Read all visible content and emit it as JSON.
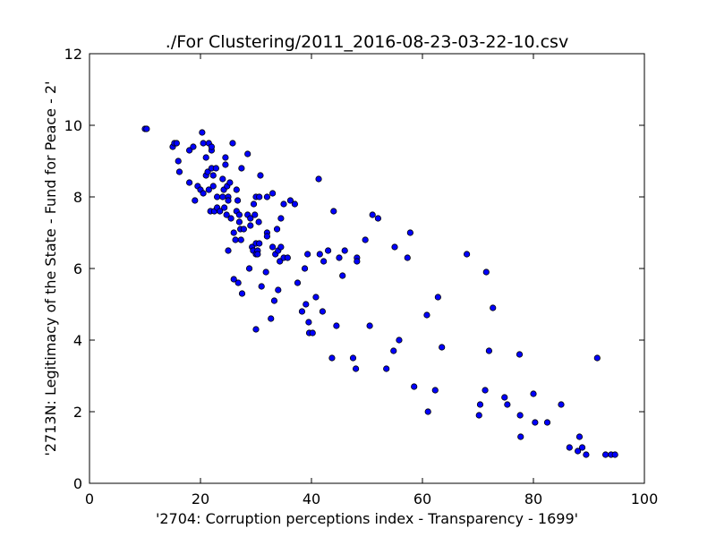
{
  "chart_data": {
    "type": "scatter",
    "title": "./For Clustering/2011_2016-08-23-03-22-10.csv",
    "xlabel": "'2704: Corruption perceptions index - Transparency - 1699'",
    "ylabel": "'2713N: Legitimacy of the State - Fund for Peace - 2'",
    "xlim": [
      0,
      100
    ],
    "ylim": [
      0,
      12
    ],
    "xticks": [
      0,
      20,
      40,
      60,
      80,
      100
    ],
    "yticks": [
      0,
      2,
      4,
      6,
      8,
      10,
      12
    ],
    "xtick_labels": [
      "0",
      "20",
      "40",
      "60",
      "80",
      "100"
    ],
    "ytick_labels": [
      "0",
      "2",
      "4",
      "6",
      "8",
      "10",
      "12"
    ],
    "grid": false,
    "marker_color": "#0000ff",
    "points": [
      [
        10,
        9.9
      ],
      [
        10.3,
        9.9
      ],
      [
        15,
        9.4
      ],
      [
        15.3,
        9.5
      ],
      [
        15.7,
        9.5
      ],
      [
        16,
        9.0
      ],
      [
        16.2,
        8.7
      ],
      [
        18,
        8.4
      ],
      [
        18,
        9.3
      ],
      [
        18.7,
        9.4
      ],
      [
        19,
        7.9
      ],
      [
        19.5,
        8.3
      ],
      [
        20,
        8.2
      ],
      [
        20.3,
        9.8
      ],
      [
        20.5,
        9.5
      ],
      [
        20.5,
        8.1
      ],
      [
        21,
        9.1
      ],
      [
        21,
        8.6
      ],
      [
        21.3,
        8.7
      ],
      [
        21.5,
        9.5
      ],
      [
        21.5,
        8.2
      ],
      [
        21.8,
        7.6
      ],
      [
        22,
        9.3
      ],
      [
        22,
        9.4
      ],
      [
        22,
        8.8
      ],
      [
        22.3,
        8.3
      ],
      [
        22.3,
        8.6
      ],
      [
        22.5,
        7.6
      ],
      [
        22.8,
        8.8
      ],
      [
        23,
        7.7
      ],
      [
        23,
        8.0
      ],
      [
        23.5,
        7.6
      ],
      [
        24,
        8.5
      ],
      [
        24,
        8.0
      ],
      [
        24.2,
        8.2
      ],
      [
        24.3,
        7.7
      ],
      [
        24.5,
        9.1
      ],
      [
        24.5,
        8.9
      ],
      [
        24.7,
        7.5
      ],
      [
        24.8,
        8.3
      ],
      [
        25,
        8.0
      ],
      [
        25,
        7.9
      ],
      [
        25,
        6.5
      ],
      [
        25.3,
        8.4
      ],
      [
        25.5,
        7.4
      ],
      [
        25.8,
        9.5
      ],
      [
        26,
        7.0
      ],
      [
        26,
        5.7
      ],
      [
        26.3,
        6.8
      ],
      [
        26.5,
        7.6
      ],
      [
        26.5,
        8.2
      ],
      [
        26.7,
        7.9
      ],
      [
        26.8,
        5.6
      ],
      [
        27,
        7.5
      ],
      [
        27,
        7.3
      ],
      [
        27.2,
        7.1
      ],
      [
        27.3,
        6.8
      ],
      [
        27.4,
        8.8
      ],
      [
        27.5,
        5.3
      ],
      [
        27.8,
        7.1
      ],
      [
        28.5,
        7.5
      ],
      [
        28.5,
        9.2
      ],
      [
        28.8,
        6.0
      ],
      [
        29,
        7.4
      ],
      [
        29,
        7.2
      ],
      [
        29.3,
        6.6
      ],
      [
        29.5,
        6.5
      ],
      [
        29.6,
        7.8
      ],
      [
        29.8,
        7.5
      ],
      [
        30,
        6.4
      ],
      [
        30,
        4.3
      ],
      [
        30,
        6.7
      ],
      [
        30,
        8.0
      ],
      [
        30.3,
        6.5
      ],
      [
        30.3,
        6.4
      ],
      [
        30.5,
        7.3
      ],
      [
        30.6,
        8.0
      ],
      [
        30.6,
        6.7
      ],
      [
        30.8,
        8.6
      ],
      [
        31,
        5.5
      ],
      [
        31.8,
        5.9
      ],
      [
        32,
        7.0
      ],
      [
        32,
        6.9
      ],
      [
        32,
        8.0
      ],
      [
        32.7,
        4.6
      ],
      [
        33,
        8.1
      ],
      [
        33,
        6.6
      ],
      [
        33.3,
        5.1
      ],
      [
        33.5,
        6.4
      ],
      [
        33.8,
        7.1
      ],
      [
        34,
        6.5
      ],
      [
        34,
        5.4
      ],
      [
        34.3,
        6.2
      ],
      [
        34.5,
        7.4
      ],
      [
        34.5,
        6.6
      ],
      [
        35,
        7.8
      ],
      [
        35,
        6.3
      ],
      [
        35.7,
        6.3
      ],
      [
        36.2,
        7.9
      ],
      [
        37,
        7.8
      ],
      [
        37.5,
        5.6
      ],
      [
        38.3,
        4.8
      ],
      [
        38.8,
        6.0
      ],
      [
        39,
        5.0
      ],
      [
        39.3,
        6.4
      ],
      [
        39.5,
        4.5
      ],
      [
        39.6,
        4.2
      ],
      [
        40.2,
        4.2
      ],
      [
        40.8,
        5.2
      ],
      [
        41.3,
        8.5
      ],
      [
        41.5,
        6.4
      ],
      [
        42,
        4.8
      ],
      [
        42.2,
        6.2
      ],
      [
        43,
        6.5
      ],
      [
        43.7,
        3.5
      ],
      [
        44,
        7.6
      ],
      [
        44.5,
        4.4
      ],
      [
        45,
        6.3
      ],
      [
        45.6,
        5.8
      ],
      [
        46,
        6.5
      ],
      [
        47.5,
        3.5
      ],
      [
        48,
        3.2
      ],
      [
        48.2,
        6.3
      ],
      [
        48.2,
        6.2
      ],
      [
        49.7,
        6.8
      ],
      [
        50.5,
        4.4
      ],
      [
        51,
        7.5
      ],
      [
        52,
        7.4
      ],
      [
        53.5,
        3.2
      ],
      [
        54.8,
        3.7
      ],
      [
        55,
        6.6
      ],
      [
        55.8,
        4.0
      ],
      [
        57.3,
        6.3
      ],
      [
        57.8,
        7.0
      ],
      [
        58.5,
        2.7
      ],
      [
        60.8,
        4.7
      ],
      [
        61,
        2.0
      ],
      [
        62.3,
        2.6
      ],
      [
        62.8,
        5.2
      ],
      [
        63.5,
        3.8
      ],
      [
        68,
        6.4
      ],
      [
        70.2,
        1.9
      ],
      [
        70.4,
        2.2
      ],
      [
        71.3,
        2.6
      ],
      [
        71.5,
        5.9
      ],
      [
        72,
        3.7
      ],
      [
        72.7,
        4.9
      ],
      [
        74.8,
        2.4
      ],
      [
        75.3,
        2.2
      ],
      [
        77.5,
        3.6
      ],
      [
        77.6,
        1.9
      ],
      [
        77.7,
        1.3
      ],
      [
        80,
        2.5
      ],
      [
        80.3,
        1.7
      ],
      [
        82.5,
        1.7
      ],
      [
        85,
        2.2
      ],
      [
        86.5,
        1.0
      ],
      [
        88,
        0.9
      ],
      [
        88.3,
        1.3
      ],
      [
        88.8,
        1.0
      ],
      [
        89.5,
        0.8
      ],
      [
        91.5,
        3.5
      ],
      [
        93,
        0.8
      ],
      [
        94,
        0.8
      ],
      [
        94.7,
        0.8
      ]
    ]
  }
}
